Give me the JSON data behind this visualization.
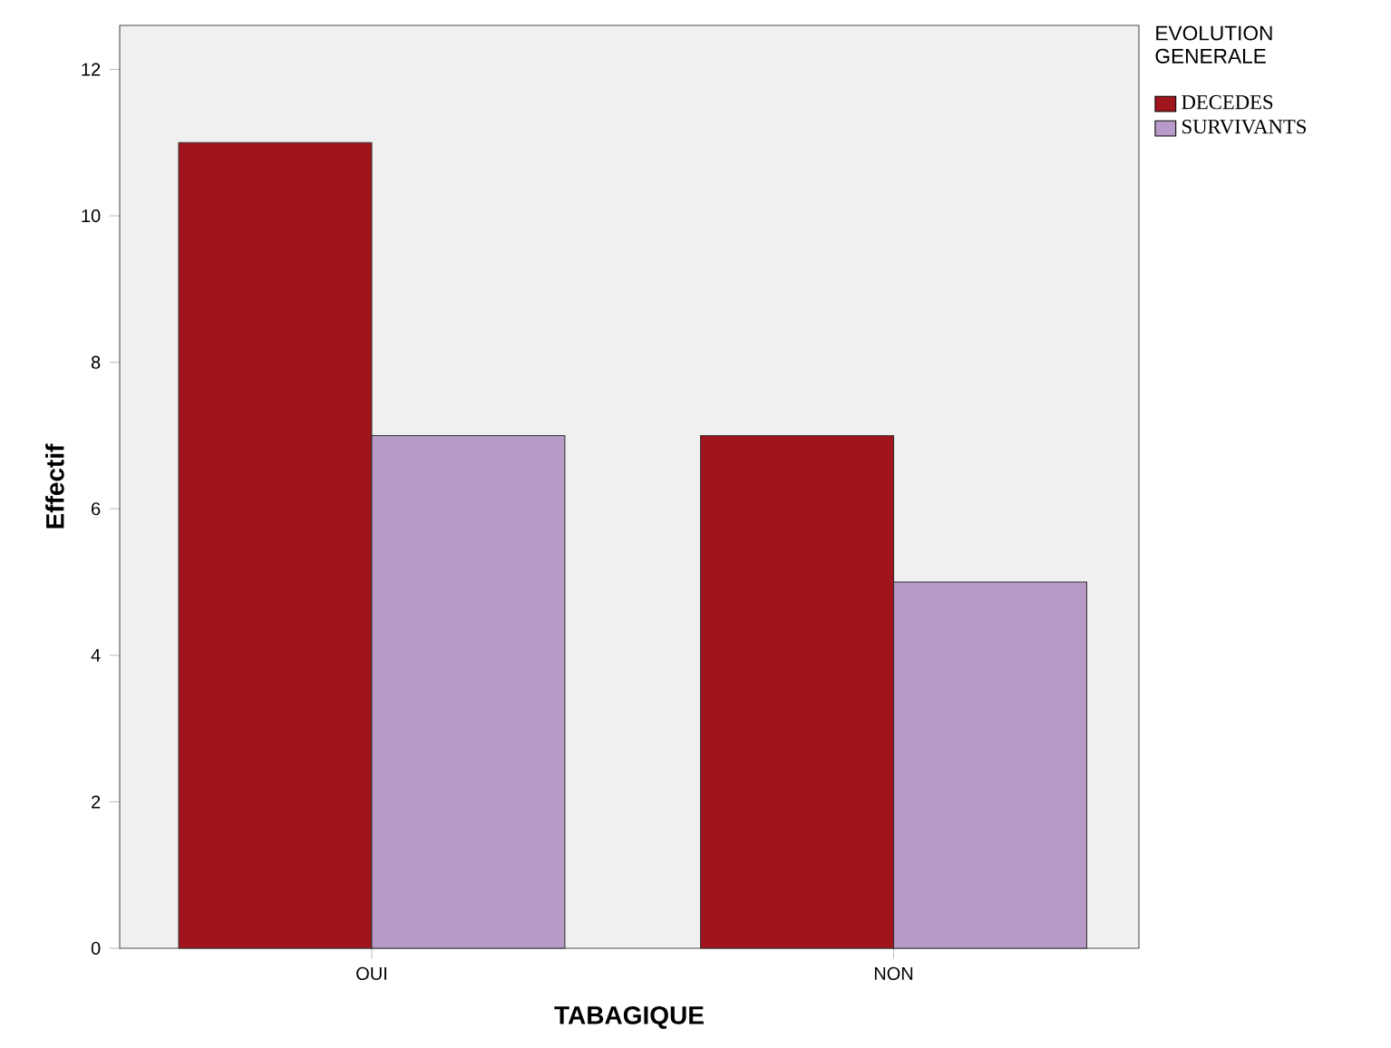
{
  "chart_data": {
    "type": "bar",
    "categories": [
      "OUI",
      "NON"
    ],
    "series": [
      {
        "name": "DECEDES",
        "color": "#a0141b",
        "values": [
          11,
          7
        ]
      },
      {
        "name": "SURVIVANTS",
        "color": "#b89ac9",
        "values": [
          7,
          5
        ]
      }
    ],
    "xlabel": "TABAGIQUE",
    "ylabel": "Effectif",
    "legend_title": "EVOLUTION GENERALE",
    "legend": "right",
    "ylim": [
      0,
      12.6
    ],
    "yticks": [
      0,
      2,
      4,
      6,
      8,
      10,
      12
    ]
  }
}
